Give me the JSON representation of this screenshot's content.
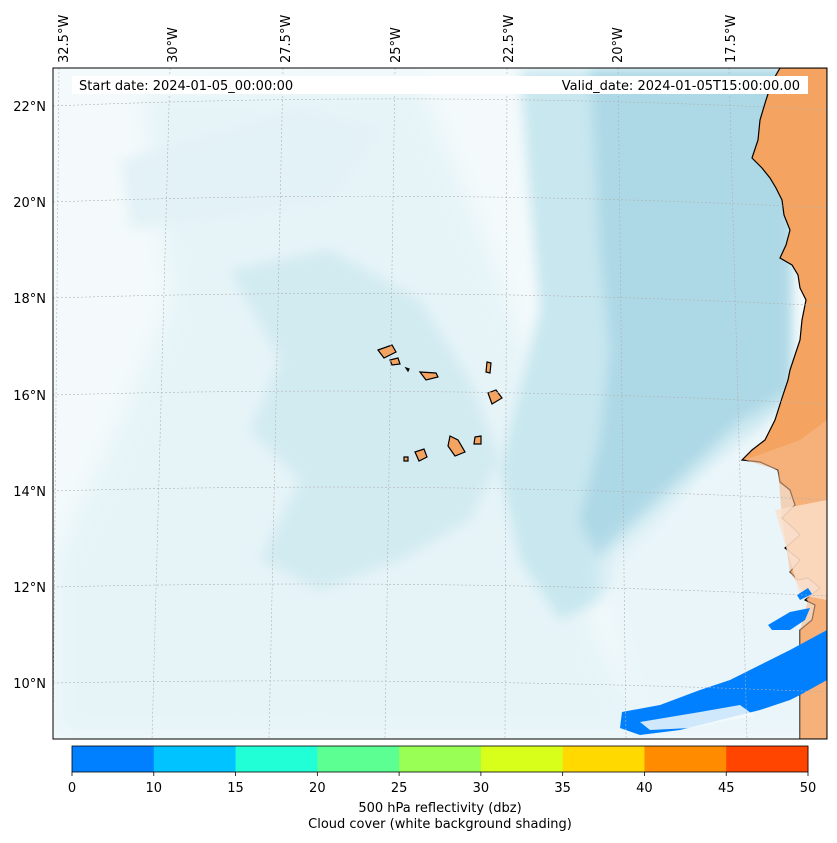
{
  "header": {
    "start_date": "Start date: 2024-01-05_00:00:00",
    "valid_date": "Valid_date: 2024-01-05T15:00:00.00"
  },
  "map": {
    "lon_labels": [
      "32.5°W",
      "30°W",
      "27.5°W",
      "25°W",
      "22.5°W",
      "20°W",
      "17.5°W"
    ],
    "lat_labels": [
      "22°N",
      "20°N",
      "18°N",
      "16°N",
      "14°N",
      "12°N",
      "10°N"
    ],
    "colors": {
      "cloud_light": "#e6f4f8",
      "cloud_mid": "#c8e7ef",
      "cloud_dense": "#add8e6",
      "land": "#f4a460",
      "reflectivity": "#0080ff"
    }
  },
  "colorbar": {
    "ticks": [
      "0",
      "10",
      "15",
      "20",
      "25",
      "30",
      "35",
      "40",
      "45",
      "50"
    ],
    "colors": [
      "#0080ff",
      "#00c3ff",
      "#20ffd6",
      "#5bff92",
      "#9aff54",
      "#d7ff1a",
      "#ffd900",
      "#ff8c00",
      "#ff4500"
    ],
    "label": "500 hPa reflectivity (dbz)",
    "sublabel": "Cloud cover (white background shading)"
  }
}
